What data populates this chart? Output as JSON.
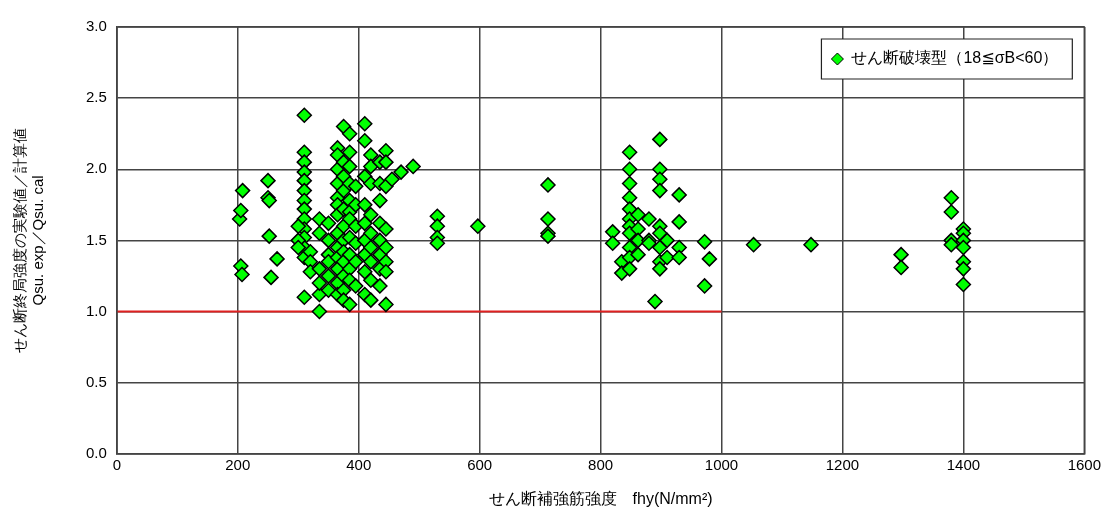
{
  "chart_data": {
    "type": "scatter",
    "xlabel": "せん断補強筋強度　fhy(N/mm²)",
    "ylabel": "せん断終局強度の実験値／計算値\nQsu. exp／Qsu. cal",
    "xlim": [
      0,
      1600
    ],
    "xticks": [
      0,
      200,
      400,
      600,
      800,
      1000,
      1200,
      1400,
      1600
    ],
    "ylim": [
      0,
      3
    ],
    "yticks": [
      {
        "value": 0,
        "label": "0.0"
      },
      {
        "value": 0.5,
        "label": "0.5"
      },
      {
        "value": 1,
        "label": "1.0"
      },
      {
        "value": 1.5,
        "label": "1.5"
      },
      {
        "value": 2,
        "label": "2.0"
      },
      {
        "value": 2.5,
        "label": "2.5"
      },
      {
        "value": 3,
        "label": "3.0"
      }
    ],
    "grid": true,
    "legend": "top right",
    "series": [
      {
        "name": "せん断破壊型（18≦σB<60）",
        "color": "#00ff00",
        "marker": "diamond",
        "x": [
          203,
          205,
          208,
          205,
          207,
          250,
          250,
          252,
          252,
          255,
          265,
          310,
          310,
          310,
          310,
          310,
          310,
          310,
          310,
          310,
          310,
          310,
          310,
          310,
          310,
          300,
          300,
          300,
          320,
          320,
          320,
          335,
          335,
          335,
          335,
          335,
          335,
          350,
          350,
          350,
          350,
          350,
          350,
          365,
          365,
          365,
          365,
          365,
          365,
          365,
          365,
          365,
          365,
          365,
          365,
          365,
          375,
          375,
          375,
          375,
          375,
          375,
          375,
          375,
          375,
          375,
          375,
          375,
          385,
          385,
          385,
          385,
          385,
          385,
          385,
          385,
          385,
          385,
          385,
          385,
          395,
          395,
          395,
          395,
          395,
          395,
          410,
          410,
          410,
          410,
          410,
          410,
          410,
          410,
          410,
          420,
          420,
          420,
          420,
          420,
          420,
          420,
          420,
          420,
          435,
          435,
          435,
          435,
          435,
          435,
          435,
          435,
          445,
          445,
          445,
          445,
          445,
          445,
          445,
          445,
          455,
          470,
          490,
          530,
          530,
          530,
          530,
          597,
          713,
          713,
          713,
          713,
          820,
          820,
          835,
          835,
          848,
          848,
          848,
          848,
          848,
          848,
          848,
          848,
          848,
          848,
          848,
          862,
          862,
          862,
          862,
          880,
          880,
          880,
          890,
          898,
          898,
          898,
          898,
          898,
          898,
          898,
          898,
          898,
          910,
          910,
          930,
          930,
          930,
          930,
          972,
          972,
          980,
          1053,
          1148,
          1297,
          1297,
          1380,
          1380,
          1380,
          1380,
          1400,
          1400,
          1400,
          1400,
          1400,
          1400,
          1400
        ],
        "values": [
          1.65,
          1.71,
          1.85,
          1.32,
          1.26,
          1.92,
          1.8,
          1.78,
          1.53,
          1.24,
          1.37,
          2.38,
          2.12,
          2.05,
          1.98,
          1.92,
          1.85,
          1.78,
          1.72,
          1.65,
          1.58,
          1.52,
          1.45,
          1.38,
          1.1,
          1.6,
          1.5,
          1.45,
          1.42,
          1.35,
          1.28,
          1.0,
          1.12,
          1.2,
          1.3,
          1.55,
          1.65,
          1.62,
          1.5,
          1.4,
          1.35,
          1.25,
          1.15,
          2.15,
          2.1,
          2.0,
          1.9,
          1.8,
          1.75,
          1.68,
          1.55,
          1.45,
          1.38,
          1.3,
          1.2,
          1.12,
          2.3,
          2.05,
          1.95,
          1.85,
          1.72,
          1.6,
          1.5,
          1.42,
          1.35,
          1.25,
          1.15,
          1.08,
          2.25,
          2.12,
          2.02,
          1.9,
          1.78,
          1.7,
          1.65,
          1.52,
          1.4,
          1.3,
          1.22,
          1.05,
          1.88,
          1.75,
          1.6,
          1.48,
          1.35,
          1.18,
          2.32,
          2.2,
          1.95,
          1.75,
          1.62,
          1.5,
          1.4,
          1.28,
          1.12,
          2.1,
          2.02,
          1.9,
          1.68,
          1.55,
          1.45,
          1.35,
          1.22,
          1.08,
          2.05,
          1.9,
          1.78,
          1.62,
          1.5,
          1.4,
          1.3,
          1.18,
          2.13,
          2.05,
          1.88,
          1.58,
          1.45,
          1.35,
          1.28,
          1.05,
          1.93,
          1.98,
          2.02,
          1.67,
          1.6,
          1.52,
          1.48,
          1.6,
          1.89,
          1.65,
          1.55,
          1.53,
          1.56,
          1.48,
          1.35,
          1.27,
          2.12,
          2.0,
          1.9,
          1.8,
          1.72,
          1.65,
          1.6,
          1.55,
          1.45,
          1.38,
          1.3,
          1.68,
          1.58,
          1.5,
          1.4,
          1.65,
          1.5,
          1.48,
          1.07,
          2.21,
          2.0,
          1.93,
          1.85,
          1.6,
          1.55,
          1.45,
          1.35,
          1.3,
          1.5,
          1.38,
          1.82,
          1.63,
          1.45,
          1.38,
          1.49,
          1.18,
          1.37,
          1.47,
          1.47,
          1.4,
          1.31,
          1.8,
          1.7,
          1.5,
          1.47,
          1.58,
          1.55,
          1.5,
          1.45,
          1.35,
          1.3,
          1.19
        ]
      },
      {
        "type": "line",
        "color": "#e02020",
        "marker": "none",
        "line_style": "solid",
        "x": [
          0,
          1000
        ],
        "values": [
          1,
          1
        ]
      }
    ]
  }
}
